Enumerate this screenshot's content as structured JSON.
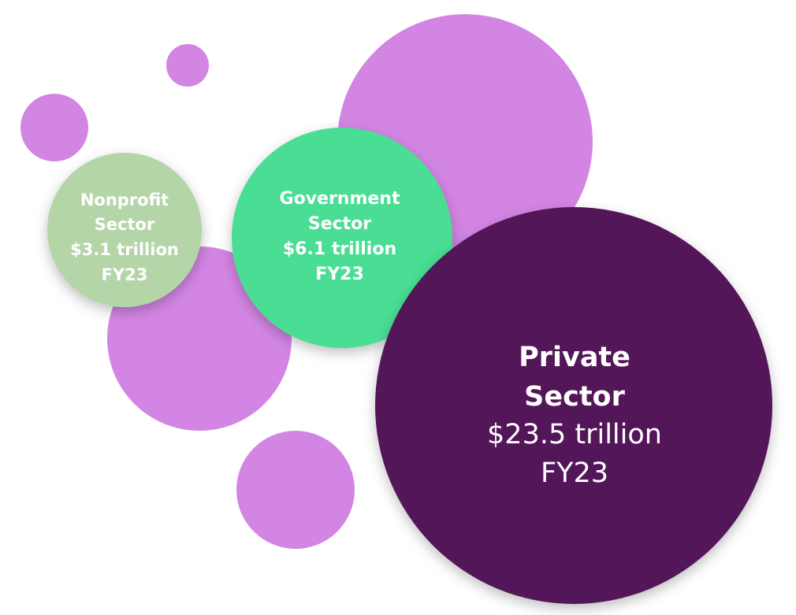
{
  "nodes": [
    {
      "label_lines": [
        "Nonprofit",
        "Sector",
        "$3.1 trillion",
        "FY23"
      ]
    },
    {
      "label_lines": [
        "Government",
        "Sector",
        "$6.1 trillion",
        "FY23"
      ]
    },
    {
      "label_lines": [
        "Private",
        "Sector",
        "$23.5 trillion",
        "FY23"
      ]
    }
  ]
}
